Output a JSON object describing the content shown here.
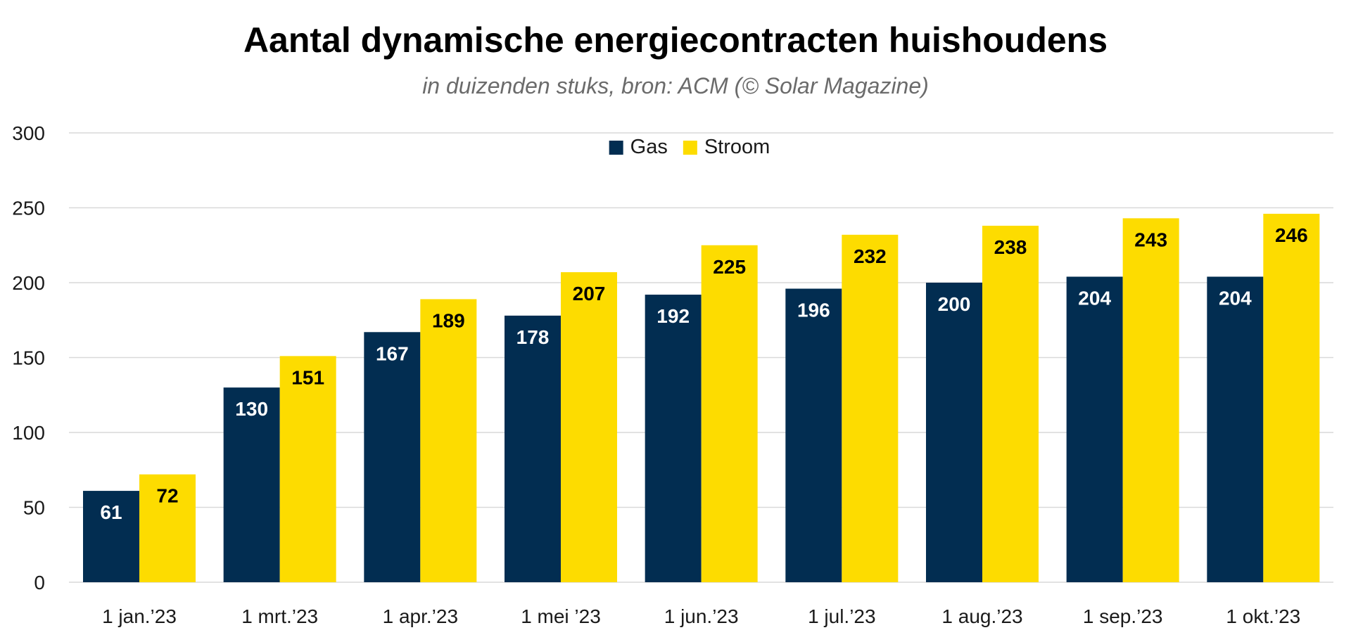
{
  "chart_data": {
    "type": "bar",
    "title": "Aantal dynamische energiecontracten huishoudens",
    "subtitle": "in duizenden stuks, bron: ACM (© Solar Magazine)",
    "categories": [
      "1 jan.’23",
      "1 mrt.’23",
      "1 apr.’23",
      "1 mei ’23",
      "1 jun.’23",
      "1 jul.’23",
      "1 aug.’23",
      "1 sep.’23",
      "1 okt.’23"
    ],
    "series": [
      {
        "name": "Gas",
        "color": "#022d51",
        "label_color": "#ffffff",
        "values": [
          61,
          130,
          167,
          178,
          192,
          196,
          200,
          204,
          204
        ]
      },
      {
        "name": "Stroom",
        "color": "#fddc00",
        "label_color": "#000000",
        "values": [
          72,
          151,
          189,
          207,
          225,
          232,
          238,
          243,
          246
        ]
      }
    ],
    "y_ticks": [
      0,
      50,
      100,
      150,
      200,
      250,
      300
    ],
    "ylim": [
      0,
      300
    ],
    "grid": true,
    "grid_color": "#d9d9d9",
    "legend_position": "top-center",
    "data_labels": true
  }
}
